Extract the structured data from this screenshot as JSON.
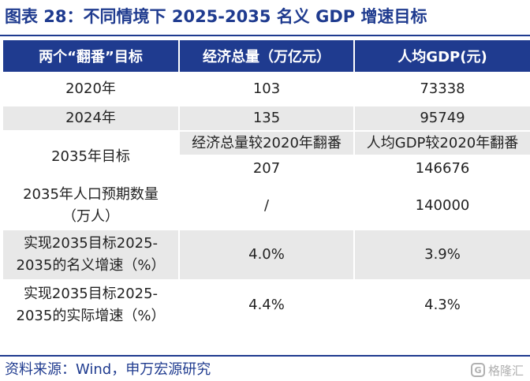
{
  "figure": {
    "title": "图表 28：不同情境下 2025-2035 名义 GDP 增速目标"
  },
  "table": {
    "headers": [
      "两个“翻番”目标",
      "经济总量（万亿元）",
      "人均GDP(元)"
    ],
    "row_2020": {
      "label": "2020年",
      "total": "103",
      "per_capita": "73338"
    },
    "row_2024": {
      "label": "2024年",
      "total": "135",
      "per_capita": "95749"
    },
    "row_2035": {
      "label": "2035年目标",
      "total_caption": "经济总量较2020年翻番",
      "per_capita_caption": "人均GDP较2020年翻番",
      "total": "207",
      "per_capita": "146676"
    },
    "row_population": {
      "label_line1": "2035年人口预期数量",
      "label_line2": "（万人）",
      "total": "/",
      "per_capita": "140000"
    },
    "row_nominal": {
      "label_line1": "实现2035目标2025-",
      "label_line2": "2035的名义增速（%）",
      "total": "4.0%",
      "per_capita": "3.9%"
    },
    "row_real": {
      "label_line1": "实现2035目标2025-",
      "label_line2": "2035的实际增速（%）",
      "total": "4.4%",
      "per_capita": "4.3%"
    }
  },
  "source": "资料来源：Wind，申万宏源研究",
  "watermark": {
    "icon": "gelonghui-logo-icon",
    "icon_glyph": "G",
    "text": "格隆汇"
  },
  "colors": {
    "accent": "#1f3b8f",
    "shade": "#e8e8e8"
  }
}
